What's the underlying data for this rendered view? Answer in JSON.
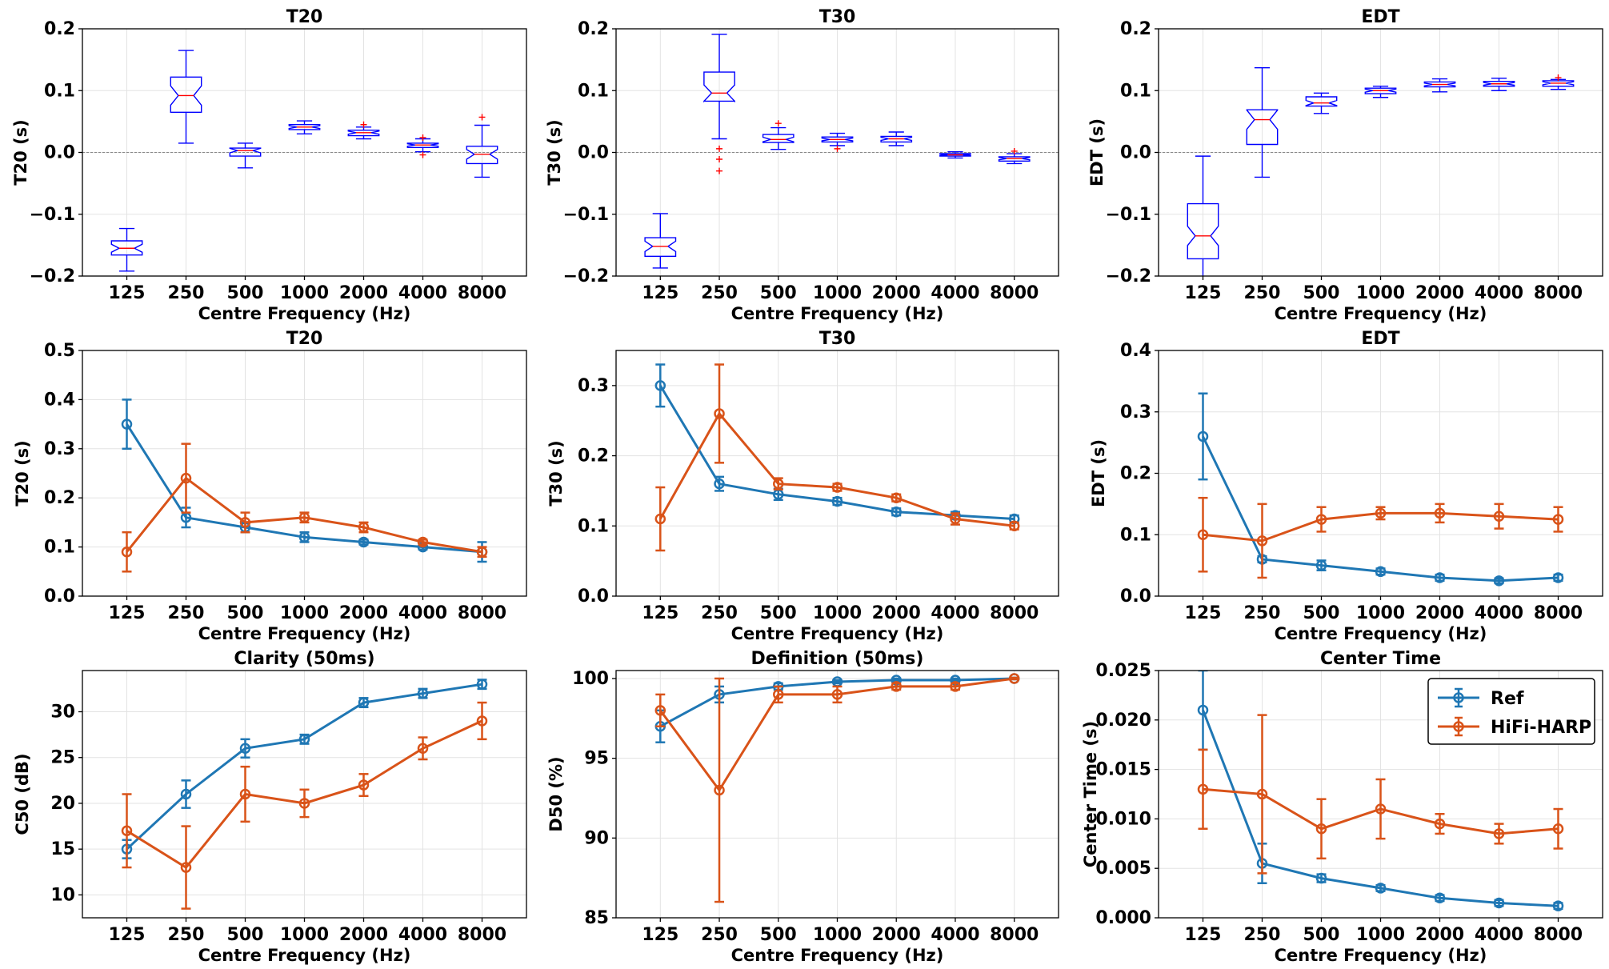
{
  "colors": {
    "ref": "#1f77b4",
    "hifi": "#d95319",
    "box": "#0000ff",
    "median": "#ff0000",
    "outlier": "#ff0000",
    "grid": "#e3e3e3"
  },
  "legend": {
    "ref": "Ref",
    "hifi": "HiFi-HARP"
  },
  "chart_data": [
    {
      "type": "box",
      "title": "T20",
      "xlabel": "Centre Frequency (Hz)",
      "ylabel": "T20 (s)",
      "categories": [
        "125",
        "250",
        "500",
        "1000",
        "2000",
        "4000",
        "8000"
      ],
      "ylim": [
        -0.2,
        0.2
      ],
      "yticks": [
        -0.2,
        -0.1,
        0.0,
        0.1,
        0.2
      ],
      "ytick_labels": [
        "−0.2",
        "−0.1",
        "0.0",
        "0.1",
        "0.2"
      ],
      "zero_line": true,
      "boxes": [
        {
          "wlo": -0.192,
          "q1": -0.166,
          "med": -0.155,
          "q3": -0.143,
          "whi": -0.123,
          "outliers": []
        },
        {
          "wlo": 0.015,
          "q1": 0.065,
          "med": 0.092,
          "q3": 0.122,
          "whi": 0.165,
          "outliers": []
        },
        {
          "wlo": -0.025,
          "q1": -0.006,
          "med": 0.003,
          "q3": 0.007,
          "whi": 0.015,
          "outliers": []
        },
        {
          "wlo": 0.03,
          "q1": 0.037,
          "med": 0.041,
          "q3": 0.045,
          "whi": 0.051,
          "outliers": []
        },
        {
          "wlo": 0.022,
          "q1": 0.027,
          "med": 0.032,
          "q3": 0.036,
          "whi": 0.041,
          "outliers": [
            0.045
          ]
        },
        {
          "wlo": 0.001,
          "q1": 0.008,
          "med": 0.012,
          "q3": 0.015,
          "whi": 0.022,
          "outliers": [
            0.024,
            -0.004
          ]
        },
        {
          "wlo": -0.04,
          "q1": -0.018,
          "med": -0.003,
          "q3": 0.01,
          "whi": 0.044,
          "outliers": [
            0.057
          ]
        }
      ]
    },
    {
      "type": "box",
      "title": "T30",
      "xlabel": "Centre Frequency (Hz)",
      "ylabel": "T30 (s)",
      "categories": [
        "125",
        "250",
        "500",
        "1000",
        "2000",
        "4000",
        "8000"
      ],
      "ylim": [
        -0.2,
        0.2
      ],
      "yticks": [
        -0.2,
        -0.1,
        0.0,
        0.1,
        0.2
      ],
      "ytick_labels": [
        "−0.2",
        "−0.1",
        "0.0",
        "0.1",
        "0.2"
      ],
      "zero_line": true,
      "boxes": [
        {
          "wlo": -0.187,
          "q1": -0.168,
          "med": -0.152,
          "q3": -0.138,
          "whi": -0.099,
          "outliers": []
        },
        {
          "wlo": 0.022,
          "q1": 0.083,
          "med": 0.096,
          "q3": 0.13,
          "whi": 0.191,
          "outliers": [
            0.006,
            -0.011,
            -0.03
          ]
        },
        {
          "wlo": 0.005,
          "q1": 0.016,
          "med": 0.021,
          "q3": 0.029,
          "whi": 0.04,
          "outliers": [
            0.047
          ]
        },
        {
          "wlo": 0.011,
          "q1": 0.017,
          "med": 0.021,
          "q3": 0.025,
          "whi": 0.031,
          "outliers": [
            0.006
          ]
        },
        {
          "wlo": 0.011,
          "q1": 0.017,
          "med": 0.022,
          "q3": 0.026,
          "whi": 0.033,
          "outliers": []
        },
        {
          "wlo": -0.009,
          "q1": -0.006,
          "med": -0.004,
          "q3": -0.002,
          "whi": 0.001,
          "outliers": []
        },
        {
          "wlo": -0.018,
          "q1": -0.014,
          "med": -0.01,
          "q3": -0.007,
          "whi": -0.002,
          "outliers": [
            0.002
          ]
        }
      ]
    },
    {
      "type": "box",
      "title": "EDT",
      "xlabel": "Centre Frequency (Hz)",
      "ylabel": "EDT (s)",
      "categories": [
        "125",
        "250",
        "500",
        "1000",
        "2000",
        "4000",
        "8000"
      ],
      "ylim": [
        -0.2,
        0.2
      ],
      "yticks": [
        -0.2,
        -0.1,
        0.0,
        0.1,
        0.2
      ],
      "ytick_labels": [
        "−0.2",
        "−0.1",
        "0.0",
        "0.1",
        "0.2"
      ],
      "zero_line": true,
      "boxes": [
        {
          "wlo": -0.205,
          "q1": -0.172,
          "med": -0.135,
          "q3": -0.083,
          "whi": -0.006,
          "outliers": []
        },
        {
          "wlo": -0.04,
          "q1": 0.013,
          "med": 0.053,
          "q3": 0.069,
          "whi": 0.137,
          "outliers": []
        },
        {
          "wlo": 0.063,
          "q1": 0.075,
          "med": 0.08,
          "q3": 0.09,
          "whi": 0.096,
          "outliers": []
        },
        {
          "wlo": 0.089,
          "q1": 0.095,
          "med": 0.1,
          "q3": 0.104,
          "whi": 0.107,
          "outliers": []
        },
        {
          "wlo": 0.098,
          "q1": 0.106,
          "med": 0.11,
          "q3": 0.114,
          "whi": 0.119,
          "outliers": []
        },
        {
          "wlo": 0.1,
          "q1": 0.107,
          "med": 0.111,
          "q3": 0.115,
          "whi": 0.12,
          "outliers": []
        },
        {
          "wlo": 0.102,
          "q1": 0.107,
          "med": 0.112,
          "q3": 0.116,
          "whi": 0.118,
          "outliers": [
            0.121
          ]
        }
      ]
    },
    {
      "type": "line",
      "title": "T20",
      "xlabel": "Centre Frequency (Hz)",
      "ylabel": "T20 (s)",
      "categories": [
        "125",
        "250",
        "500",
        "1000",
        "2000",
        "4000",
        "8000"
      ],
      "ylim": [
        0.0,
        0.5
      ],
      "yticks": [
        0.0,
        0.1,
        0.2,
        0.3,
        0.4,
        0.5
      ],
      "ytick_labels": [
        "0.0",
        "0.1",
        "0.2",
        "0.3",
        "0.4",
        "0.5"
      ],
      "series": [
        {
          "name": "Ref",
          "values": [
            0.35,
            0.16,
            0.14,
            0.12,
            0.11,
            0.1,
            0.09
          ],
          "errors": [
            0.05,
            0.02,
            0.01,
            0.01,
            0.005,
            0.005,
            0.02
          ]
        },
        {
          "name": "HiFi-HARP",
          "values": [
            0.09,
            0.24,
            0.15,
            0.16,
            0.14,
            0.11,
            0.09
          ],
          "errors": [
            0.04,
            0.07,
            0.02,
            0.01,
            0.01,
            0.005,
            0.01
          ]
        }
      ]
    },
    {
      "type": "line",
      "title": "T30",
      "xlabel": "Centre Frequency (Hz)",
      "ylabel": "T30 (s)",
      "categories": [
        "125",
        "250",
        "500",
        "1000",
        "2000",
        "4000",
        "8000"
      ],
      "ylim": [
        0.0,
        0.35
      ],
      "yticks": [
        0.0,
        0.1,
        0.2,
        0.3
      ],
      "ytick_labels": [
        "0.0",
        "0.1",
        "0.2",
        "0.3"
      ],
      "series": [
        {
          "name": "Ref",
          "values": [
            0.3,
            0.16,
            0.145,
            0.135,
            0.12,
            0.115,
            0.11
          ],
          "errors": [
            0.03,
            0.01,
            0.008,
            0.005,
            0.005,
            0.005,
            0.005
          ]
        },
        {
          "name": "HiFi-HARP",
          "values": [
            0.11,
            0.26,
            0.16,
            0.155,
            0.14,
            0.11,
            0.1
          ],
          "errors": [
            0.045,
            0.07,
            0.008,
            0.005,
            0.005,
            0.008,
            0.005
          ]
        }
      ]
    },
    {
      "type": "line",
      "title": "EDT",
      "xlabel": "Centre Frequency (Hz)",
      "ylabel": "EDT (s)",
      "categories": [
        "125",
        "250",
        "500",
        "1000",
        "2000",
        "4000",
        "8000"
      ],
      "ylim": [
        0.0,
        0.4
      ],
      "yticks": [
        0.0,
        0.1,
        0.2,
        0.3,
        0.4
      ],
      "ytick_labels": [
        "0.0",
        "0.1",
        "0.2",
        "0.3",
        "0.4"
      ],
      "series": [
        {
          "name": "Ref",
          "values": [
            0.26,
            0.06,
            0.05,
            0.04,
            0.03,
            0.025,
            0.03
          ],
          "errors": [
            0.07,
            0.005,
            0.008,
            0.005,
            0.005,
            0.004,
            0.005
          ]
        },
        {
          "name": "HiFi-HARP",
          "values": [
            0.1,
            0.09,
            0.125,
            0.135,
            0.135,
            0.13,
            0.125
          ],
          "errors": [
            0.06,
            0.06,
            0.02,
            0.01,
            0.015,
            0.02,
            0.02
          ]
        }
      ]
    },
    {
      "type": "line",
      "title": "Clarity (50ms)",
      "xlabel": "Centre Frequency (Hz)",
      "ylabel": "C50 (dB)",
      "categories": [
        "125",
        "250",
        "500",
        "1000",
        "2000",
        "4000",
        "8000"
      ],
      "ylim": [
        7.5,
        34.5
      ],
      "yticks": [
        10,
        15,
        20,
        25,
        30
      ],
      "ytick_labels": [
        "10",
        "15",
        "20",
        "25",
        "30"
      ],
      "series": [
        {
          "name": "Ref",
          "values": [
            15,
            21,
            26,
            27,
            31,
            32,
            33
          ],
          "errors": [
            1.0,
            1.5,
            1.0,
            0.5,
            0.5,
            0.5,
            0.5
          ]
        },
        {
          "name": "HiFi-HARP",
          "values": [
            17,
            13,
            21,
            20,
            22,
            26,
            29
          ],
          "errors": [
            4.0,
            4.5,
            3.0,
            1.5,
            1.2,
            1.2,
            2.0
          ]
        }
      ]
    },
    {
      "type": "line",
      "title": "Definition (50ms)",
      "xlabel": "Centre Frequency (Hz)",
      "ylabel": "D50 (%)",
      "categories": [
        "125",
        "250",
        "500",
        "1000",
        "2000",
        "4000",
        "8000"
      ],
      "ylim": [
        85.0,
        100.5
      ],
      "yticks": [
        85,
        90,
        95,
        100
      ],
      "ytick_labels": [
        "85",
        "90",
        "95",
        "100"
      ],
      "series": [
        {
          "name": "Ref",
          "values": [
            97,
            99,
            99.5,
            99.8,
            99.9,
            99.9,
            100
          ],
          "errors": [
            1.0,
            0.5,
            0.2,
            0.1,
            0.1,
            0.1,
            0.05
          ]
        },
        {
          "name": "HiFi-HARP",
          "values": [
            98,
            93,
            99,
            99,
            99.5,
            99.5,
            100
          ],
          "errors": [
            1.0,
            7.0,
            0.5,
            0.5,
            0.2,
            0.2,
            0.05
          ]
        }
      ]
    },
    {
      "type": "line",
      "title": "Center Time",
      "xlabel": "Centre Frequency (Hz)",
      "ylabel": "Center Time (s)",
      "categories": [
        "125",
        "250",
        "500",
        "1000",
        "2000",
        "4000",
        "8000"
      ],
      "ylim": [
        0.0,
        0.025
      ],
      "yticks": [
        0.0,
        0.005,
        0.01,
        0.015,
        0.02,
        0.025
      ],
      "ytick_labels": [
        "0.000",
        "0.005",
        "0.010",
        "0.015",
        "0.020",
        "0.025"
      ],
      "legend": true,
      "series": [
        {
          "name": "Ref",
          "values": [
            0.021,
            0.0055,
            0.004,
            0.003,
            0.002,
            0.0015,
            0.0012
          ],
          "errors": [
            0.004,
            0.002,
            0.0004,
            0.0003,
            0.0003,
            0.0003,
            0.0003
          ]
        },
        {
          "name": "HiFi-HARP",
          "values": [
            0.013,
            0.0125,
            0.009,
            0.011,
            0.0095,
            0.0085,
            0.009
          ],
          "errors": [
            0.004,
            0.008,
            0.003,
            0.003,
            0.001,
            0.001,
            0.002
          ]
        }
      ]
    }
  ]
}
